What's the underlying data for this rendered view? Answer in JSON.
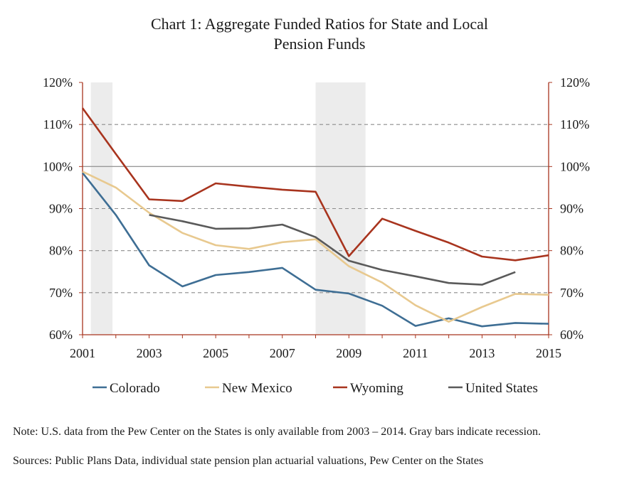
{
  "chart_data": {
    "type": "line",
    "title_lines": [
      "Chart 1: Aggregate Funded Ratios for State and Local",
      "Pension Funds"
    ],
    "xlabel": "",
    "ylabel": "",
    "xlim": [
      2001,
      2015
    ],
    "ylim": [
      60,
      120
    ],
    "x_ticks": [
      "2001",
      "2003",
      "2005",
      "2007",
      "2009",
      "2011",
      "2013",
      "2015"
    ],
    "y_ticks_left": [
      "120%",
      "110%",
      "100%",
      "90%",
      "80%",
      "70%",
      "60%"
    ],
    "y_ticks_right": [
      "120%",
      "110%",
      "100%",
      "90%",
      "80%",
      "70%",
      "60%"
    ],
    "y_tick_values": [
      120,
      110,
      100,
      90,
      80,
      70,
      60
    ],
    "x_tick_values": [
      2001,
      2003,
      2005,
      2007,
      2009,
      2011,
      2013,
      2015
    ],
    "grid": "dashed horizontal",
    "reference_line_value": 100,
    "recession_bands": [
      {
        "start": 2001.25,
        "end": 2001.9
      },
      {
        "start": 2008.0,
        "end": 2009.5
      }
    ],
    "legend_position": "bottom",
    "series": [
      {
        "name": "Colorado",
        "color": "#3e6e94",
        "x": [
          2001,
          2002,
          2003,
          2004,
          2005,
          2006,
          2007,
          2008,
          2009,
          2010,
          2011,
          2012,
          2013,
          2014,
          2015
        ],
        "y": [
          98.5,
          88.5,
          76.5,
          71.5,
          74.2,
          74.9,
          75.9,
          70.7,
          69.8,
          66.9,
          62.1,
          63.9,
          62.0,
          62.8,
          62.6
        ]
      },
      {
        "name": "New Mexico",
        "color": "#e8c98f",
        "x": [
          2001,
          2002,
          2003,
          2004,
          2005,
          2006,
          2007,
          2008,
          2009,
          2010,
          2011,
          2012,
          2013,
          2014,
          2015
        ],
        "y": [
          98.8,
          95.0,
          89.0,
          84.2,
          81.3,
          80.4,
          82.0,
          82.7,
          76.3,
          72.4,
          67.0,
          63.1,
          66.6,
          69.7,
          69.5
        ]
      },
      {
        "name": "Wyoming",
        "color": "#a8341e",
        "x": [
          2001,
          2002,
          2003,
          2004,
          2005,
          2006,
          2007,
          2008,
          2009,
          2010,
          2011,
          2012,
          2013,
          2014,
          2015
        ],
        "y": [
          113.9,
          103.0,
          92.2,
          91.8,
          96.0,
          95.2,
          94.5,
          94.0,
          78.7,
          87.6,
          84.7,
          81.9,
          78.6,
          77.7,
          78.9
        ]
      },
      {
        "name": "United States",
        "color": "#5a5a5a",
        "x": [
          2003,
          2004,
          2005,
          2006,
          2007,
          2008,
          2009,
          2010,
          2011,
          2012,
          2013,
          2014
        ],
        "y": [
          88.5,
          87.0,
          85.2,
          85.3,
          86.2,
          83.2,
          77.6,
          75.4,
          73.9,
          72.3,
          71.9,
          74.9
        ]
      }
    ]
  },
  "notes": {
    "note": "Note: U.S. data from the Pew Center on the States is only available from 2003 – 2014. Gray bars indicate recession.",
    "sources": "Sources: Public Plans Data, individual state pension plan actuarial valuations, Pew Center on the States"
  }
}
